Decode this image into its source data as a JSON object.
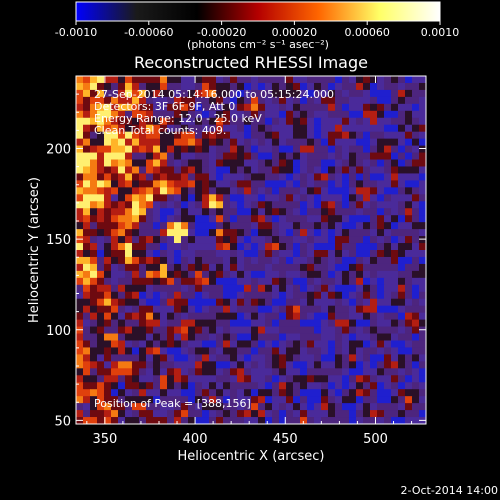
{
  "window": {
    "footer_date": "2-Oct-2014 14:00"
  },
  "colorbar": {
    "ticks": [
      "-0.0010",
      "-0.00060",
      "-0.00020",
      "0.00020",
      "0.00060",
      "0.0010"
    ],
    "unit_label": "(photons cm⁻² s⁻¹ asec⁻²)",
    "range": [
      -0.001,
      0.001
    ],
    "stops": [
      "#0000ff",
      "#1a1a1a",
      "#000000",
      "#b40000",
      "#ff6600",
      "#ffff66",
      "#ffffff"
    ]
  },
  "chart_data": {
    "type": "heatmap",
    "title": "Reconstructed RHESSI Image",
    "xlabel": "Heliocentric X (arcsec)",
    "ylabel": "Heliocentric Y (arcsec)",
    "xlim": [
      334,
      528
    ],
    "ylim": [
      48,
      240
    ],
    "x_ticks": [
      350,
      400,
      450,
      500
    ],
    "y_ticks": [
      50,
      100,
      150,
      200
    ],
    "annotations": [
      "27-Sep-2014 05:14:16.000 to 05:15:24.000",
      "Detectors: 3F 6F 9F, Att 0",
      "Energy Range: 12.0 - 25.0 keV",
      "Clean    Total counts: 409."
    ],
    "peak_label": "Position of Peak = [388,156]",
    "peak": [
      388,
      156
    ],
    "grid": false,
    "colormap": "blue-black-red-yellow-white"
  }
}
